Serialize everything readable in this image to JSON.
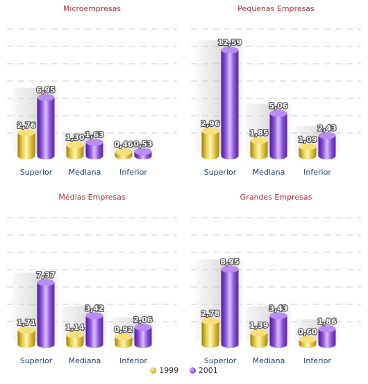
{
  "colors": {
    "y1999": "#e0c13a",
    "y2001": "#8a4fd8",
    "title": "#b02a3a",
    "cat": "#1f3c7a"
  },
  "legend": {
    "s1": "1999",
    "s2": "2001"
  },
  "chart_data": [
    {
      "type": "bar",
      "title": "Microempresas",
      "categories": [
        "Superior",
        "Mediana",
        "Inferior"
      ],
      "series": [
        {
          "name": "1999",
          "values": [
            2.76,
            1.3,
            0.46
          ]
        },
        {
          "name": "2001",
          "values": [
            6.95,
            1.63,
            0.53
          ]
        }
      ],
      "labels": [
        [
          "2,76",
          "1,30",
          "0,46"
        ],
        [
          "6,95",
          "1,63",
          "0,53"
        ]
      ],
      "ylim": [
        0,
        14
      ]
    },
    {
      "type": "bar",
      "title": "Pequenas Empresas",
      "categories": [
        "Superior",
        "Mediana",
        "Inferior"
      ],
      "series": [
        {
          "name": "1999",
          "values": [
            2.96,
            1.85,
            1.09
          ]
        },
        {
          "name": "2001",
          "values": [
            12.59,
            5.06,
            2.43
          ]
        }
      ],
      "labels": [
        [
          "2,96",
          "1,85",
          "1,09"
        ],
        [
          "12,59",
          "5,06",
          "2,43"
        ]
      ],
      "ylim": [
        0,
        14
      ]
    },
    {
      "type": "bar",
      "title": "Médias Empresas",
      "categories": [
        "Superior",
        "Mediana",
        "Inferior"
      ],
      "series": [
        {
          "name": "1999",
          "values": [
            1.71,
            1.14,
            0.92
          ]
        },
        {
          "name": "2001",
          "values": [
            7.37,
            3.42,
            2.06
          ]
        }
      ],
      "labels": [
        [
          "1,71",
          "1,14",
          "0,92"
        ],
        [
          "7,37",
          "3,42",
          "2,06"
        ]
      ],
      "ylim": [
        0,
        14
      ]
    },
    {
      "type": "bar",
      "title": "Grandes Empresas",
      "categories": [
        "Superior",
        "Mediana",
        "Inferior"
      ],
      "series": [
        {
          "name": "1999",
          "values": [
            2.78,
            1.39,
            0.6
          ]
        },
        {
          "name": "2001",
          "values": [
            8.95,
            3.43,
            1.86
          ]
        }
      ],
      "labels": [
        [
          "2,78",
          "1,39",
          "0,60"
        ],
        [
          "8,95",
          "3,43",
          "1,86"
        ]
      ],
      "ylim": [
        0,
        14
      ]
    }
  ]
}
